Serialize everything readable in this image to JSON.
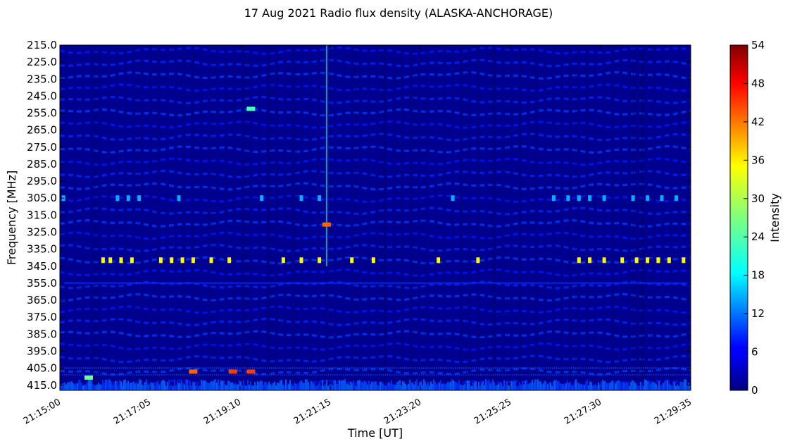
{
  "chart_data": {
    "type": "heatmap",
    "title": "17 Aug 2021 Radio flux density (ALASKA-ANCHORAGE)",
    "xlabel": "Time [UT]",
    "ylabel": "Frequency [MHz]",
    "x_ticks": [
      "21:15:00",
      "21:17:05",
      "21:19:10",
      "21:21:15",
      "21:23:20",
      "21:25:25",
      "21:27:30",
      "21:29:35"
    ],
    "y_ticks": [
      "215.0",
      "225.0",
      "235.0",
      "245.0",
      "255.0",
      "265.0",
      "275.0",
      "285.0",
      "295.0",
      "305.0",
      "315.0",
      "325.0",
      "335.0",
      "345.0",
      "355.0",
      "365.0",
      "375.0",
      "385.0",
      "395.0",
      "405.0",
      "415.0"
    ],
    "xlim": [
      "21:15:00",
      "21:29:35"
    ],
    "ylim": [
      215.0,
      418.0
    ],
    "y_inverted": true,
    "colorbar": {
      "label": "Intensity",
      "ticks": [
        "0",
        "6",
        "12",
        "18",
        "24",
        "30",
        "36",
        "42",
        "48",
        "54"
      ],
      "range": [
        0,
        54
      ],
      "colormap": "jet"
    },
    "background_level": 4,
    "features": [
      {
        "kind": "band",
        "freq": 305.0,
        "times": [
          "21:15:05",
          "21:16:20",
          "21:16:35",
          "21:16:50",
          "21:17:45",
          "21:19:40",
          "21:20:35",
          "21:21:00",
          "21:24:05",
          "21:26:25",
          "21:26:45",
          "21:27:00",
          "21:27:15",
          "21:27:35",
          "21:28:15",
          "21:28:35",
          "21:28:55",
          "21:29:15"
        ],
        "level": 16
      },
      {
        "kind": "band",
        "freq": 341.5,
        "times": [
          "21:16:00",
          "21:16:10",
          "21:16:25",
          "21:16:40",
          "21:17:20",
          "21:17:35",
          "21:17:50",
          "21:18:05",
          "21:18:30",
          "21:18:55",
          "21:20:10",
          "21:20:35",
          "21:21:00",
          "21:21:45",
          "21:22:15",
          "21:23:45",
          "21:24:40",
          "21:27:00",
          "21:27:15",
          "21:27:35",
          "21:28:00",
          "21:28:20",
          "21:28:35",
          "21:28:50",
          "21:29:05",
          "21:29:25"
        ],
        "level": 34
      },
      {
        "kind": "spike",
        "time": "21:21:10",
        "freq_range": [
          215,
          345
        ],
        "level": 22
      },
      {
        "kind": "spot",
        "time": "21:21:10",
        "freq": 320.5,
        "level": 42
      },
      {
        "kind": "spot",
        "time": "21:18:05",
        "freq": 407.0,
        "level": 42
      },
      {
        "kind": "spot",
        "time": "21:19:00",
        "freq": 407.0,
        "level": 44
      },
      {
        "kind": "spot",
        "time": "21:19:25",
        "freq": 407.0,
        "level": 44
      },
      {
        "kind": "spot",
        "time": "21:15:40",
        "freq": 410.5,
        "level": 26
      },
      {
        "kind": "spot",
        "time": "21:19:25",
        "freq": 252.5,
        "level": 24
      }
    ]
  }
}
